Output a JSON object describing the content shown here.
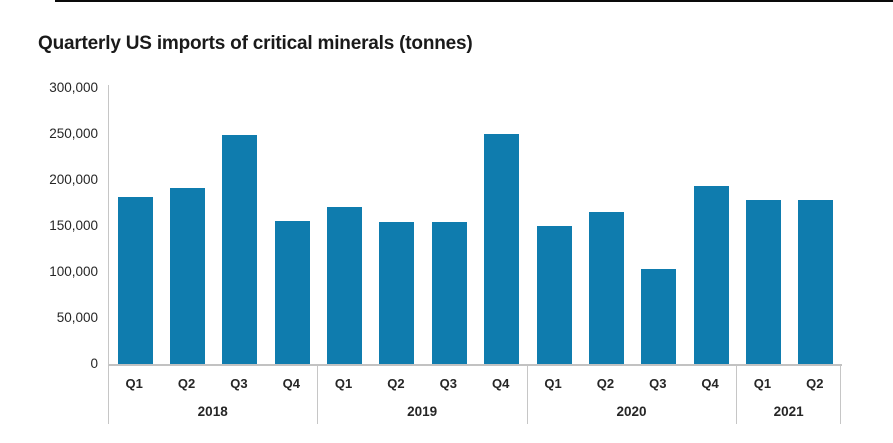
{
  "title": "Quarterly US imports of critical minerals (tonnes)",
  "colors": {
    "bar": "#0F7CAE",
    "axis_line": "#c6c6c6",
    "text": "#262626",
    "title_text": "#1a1a1a",
    "top_rule": "#0a0a0a",
    "background": "#ffffff"
  },
  "y_axis": {
    "tick_labels": [
      "300,000",
      "250,000",
      "200,000",
      "150,000",
      "100,000",
      "50,000",
      "0"
    ]
  },
  "chart_data": {
    "type": "bar",
    "title": "Quarterly US imports of critical minerals (tonnes)",
    "unit": "tonnes",
    "xlabel": "",
    "ylabel": "tonnes",
    "ylim": [
      0,
      300000
    ],
    "y_ticks": [
      0,
      50000,
      100000,
      150000,
      200000,
      250000,
      300000
    ],
    "grid": false,
    "legend": false,
    "categories": [
      "2018 Q1",
      "2018 Q2",
      "2018 Q3",
      "2018 Q4",
      "2019 Q1",
      "2019 Q2",
      "2019 Q3",
      "2019 Q4",
      "2020 Q1",
      "2020 Q2",
      "2020 Q3",
      "2020 Q4",
      "2021 Q1",
      "2021 Q2"
    ],
    "values": [
      182000,
      191000,
      249000,
      155000,
      171000,
      154000,
      154000,
      250000,
      150000,
      165000,
      103000,
      193000,
      178000,
      178000
    ],
    "groups": [
      {
        "year": "2018",
        "quarters": [
          "Q1",
          "Q2",
          "Q3",
          "Q4"
        ],
        "values": [
          182000,
          191000,
          249000,
          155000
        ]
      },
      {
        "year": "2019",
        "quarters": [
          "Q1",
          "Q2",
          "Q3",
          "Q4"
        ],
        "values": [
          171000,
          154000,
          154000,
          250000
        ]
      },
      {
        "year": "2020",
        "quarters": [
          "Q1",
          "Q2",
          "Q3",
          "Q4"
        ],
        "values": [
          150000,
          165000,
          103000,
          193000
        ]
      },
      {
        "year": "2021",
        "quarters": [
          "Q1",
          "Q2"
        ],
        "values": [
          178000,
          178000
        ]
      }
    ]
  }
}
